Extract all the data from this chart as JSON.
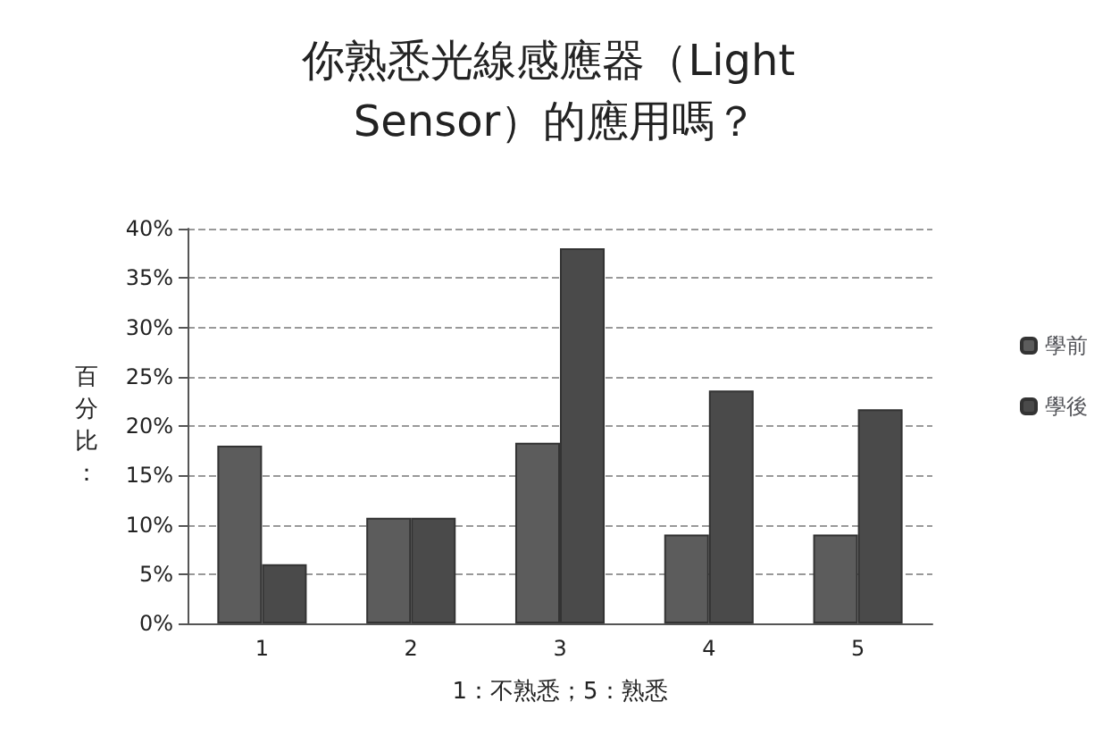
{
  "chart_data": {
    "type": "bar",
    "title": "你熟悉光線感應器（Light Sensor）的應用嗎？",
    "xlabel": "1：不熟悉；5：熟悉",
    "ylabel": "百分比：",
    "categories": [
      "1",
      "2",
      "3",
      "4",
      "5"
    ],
    "series": [
      {
        "name": "學前",
        "color": "#5c5c5c",
        "values": [
          18,
          10.7,
          18.3,
          9,
          9
        ]
      },
      {
        "name": "學後",
        "color": "#4a4a4a",
        "values": [
          6,
          10.7,
          38,
          23.6,
          21.7
        ]
      }
    ],
    "ylim": [
      0,
      40
    ],
    "yticks": [
      {
        "value": 0,
        "label": "0%"
      },
      {
        "value": 5,
        "label": "5%"
      },
      {
        "value": 10,
        "label": "10%"
      },
      {
        "value": 15,
        "label": "15%"
      },
      {
        "value": 20,
        "label": "20%"
      },
      {
        "value": 25,
        "label": "25%"
      },
      {
        "value": 30,
        "label": "30%"
      },
      {
        "value": 35,
        "label": "35%"
      },
      {
        "value": 40,
        "label": "40%"
      }
    ],
    "grid": "y",
    "legend": "right"
  }
}
